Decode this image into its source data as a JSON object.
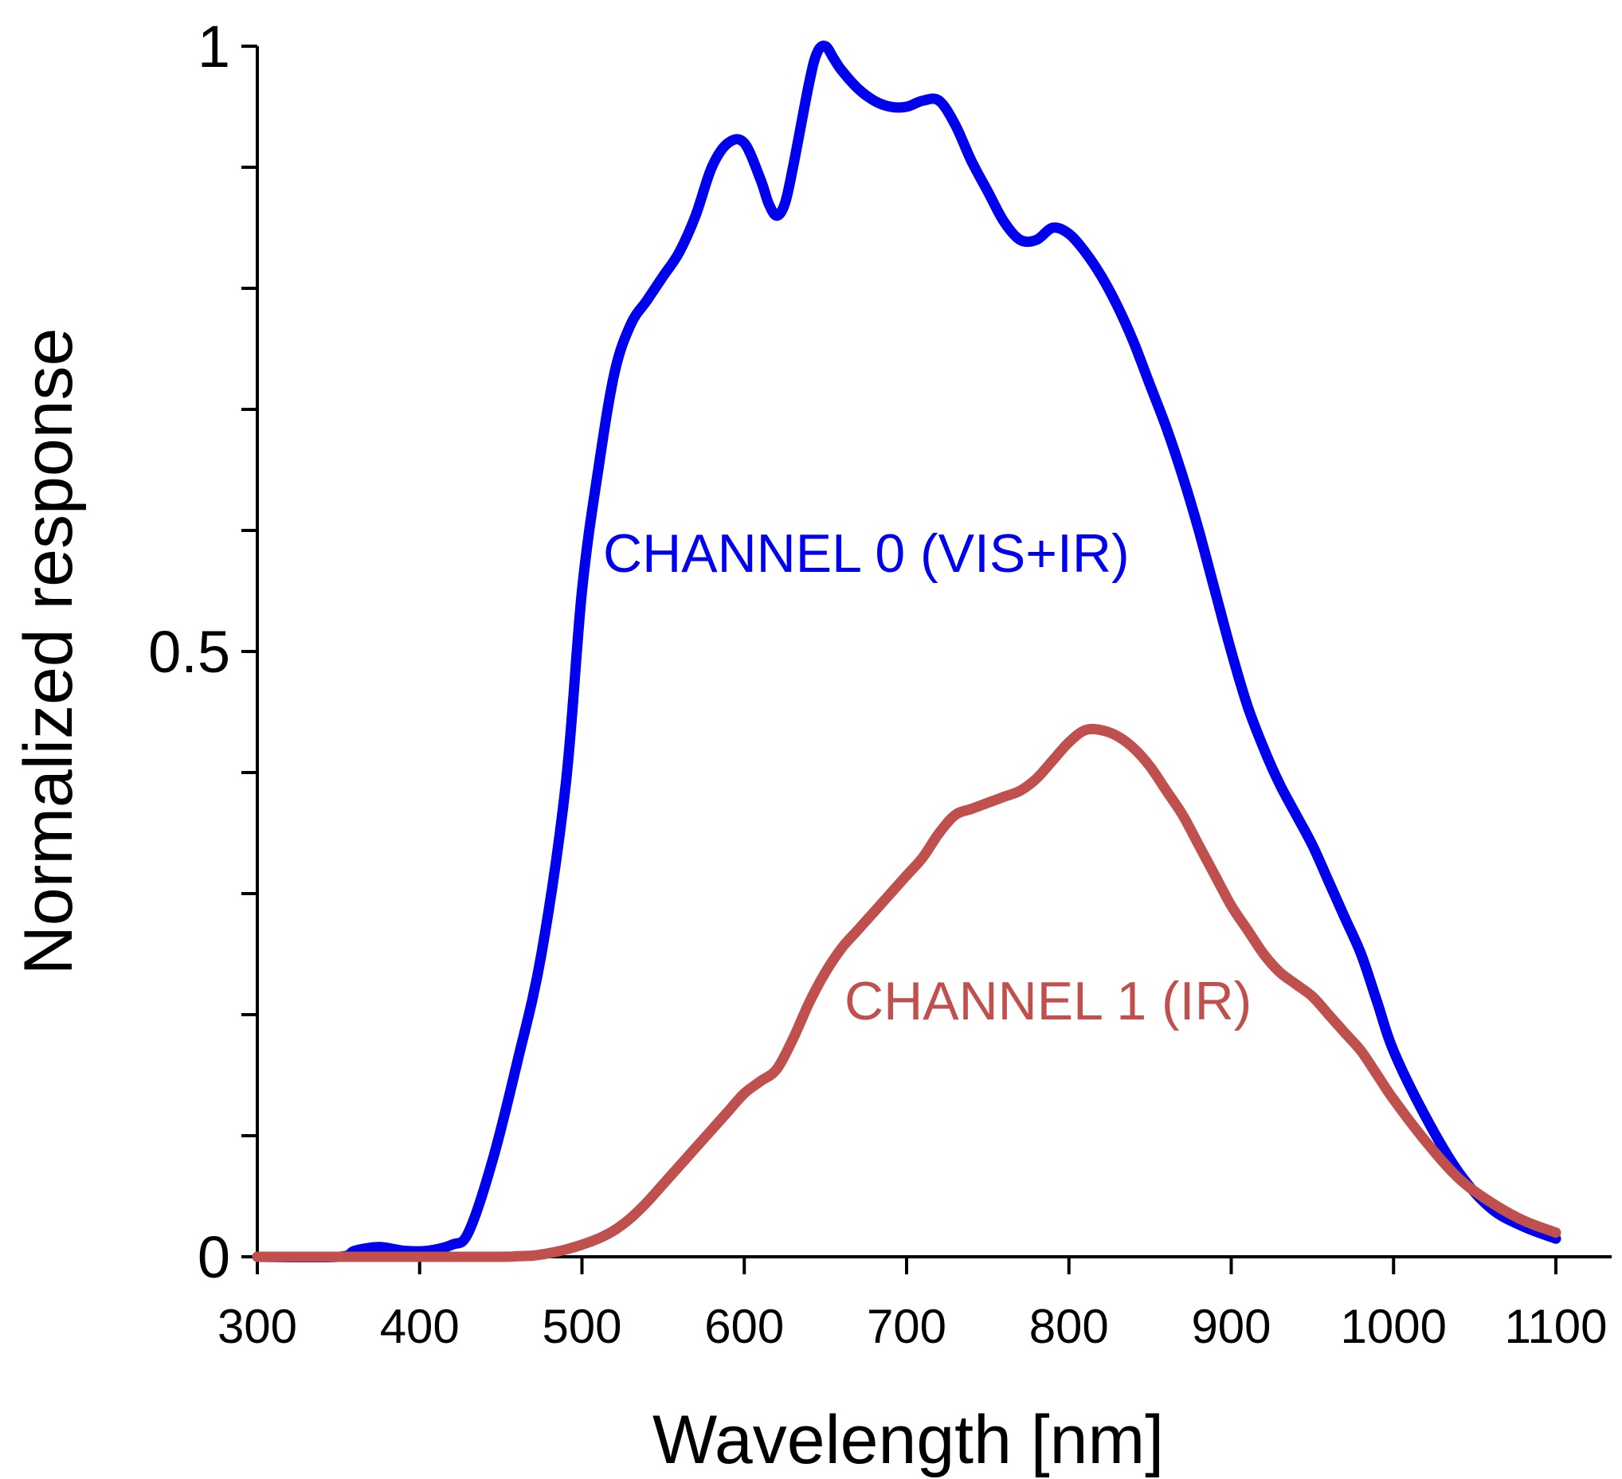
{
  "chart_data": {
    "type": "line",
    "title": "",
    "xlabel": "Wavelength [nm]",
    "ylabel": "Normalized response",
    "xlim": [
      300,
      1100
    ],
    "ylim": [
      0,
      1
    ],
    "x_ticks": [
      300,
      400,
      500,
      600,
      700,
      800,
      900,
      1000,
      1100
    ],
    "x_tick_labels": [
      "300",
      "400",
      "500",
      "600",
      "700",
      "800",
      "900",
      "1000",
      "1100"
    ],
    "y_major_ticks": [
      0,
      0.5,
      1
    ],
    "y_tick_labels": [
      "0",
      "0.5",
      "1"
    ],
    "y_minor_ticks": [
      0.1,
      0.2,
      0.3,
      0.4,
      0.6,
      0.7,
      0.8,
      0.9
    ],
    "grid": false,
    "series": [
      {
        "name": "CHANNEL 0 (VIS+IR)",
        "label": "CHANNEL 0 (VIS+IR)",
        "color": "#0000ee",
        "x": [
          300,
          350,
          360,
          375,
          390,
          405,
          420,
          430,
          445,
          460,
          475,
          490,
          500,
          510,
          520,
          530,
          540,
          550,
          560,
          570,
          580,
          590,
          600,
          610,
          615,
          620,
          625,
          630,
          640,
          645,
          650,
          655,
          660,
          670,
          680,
          690,
          700,
          710,
          720,
          730,
          740,
          750,
          760,
          770,
          780,
          790,
          800,
          810,
          820,
          830,
          840,
          850,
          860,
          870,
          880,
          890,
          900,
          910,
          920,
          930,
          940,
          950,
          960,
          970,
          980,
          990,
          1000,
          1020,
          1040,
          1060,
          1080,
          1100
        ],
        "y": [
          0.0,
          0.0,
          0.005,
          0.008,
          0.005,
          0.005,
          0.01,
          0.02,
          0.08,
          0.16,
          0.25,
          0.39,
          0.55,
          0.65,
          0.73,
          0.77,
          0.79,
          0.81,
          0.83,
          0.86,
          0.9,
          0.92,
          0.92,
          0.89,
          0.87,
          0.86,
          0.87,
          0.9,
          0.97,
          0.995,
          1.0,
          0.99,
          0.98,
          0.965,
          0.955,
          0.95,
          0.95,
          0.955,
          0.955,
          0.935,
          0.905,
          0.88,
          0.855,
          0.84,
          0.84,
          0.85,
          0.845,
          0.83,
          0.81,
          0.785,
          0.755,
          0.72,
          0.685,
          0.645,
          0.6,
          0.55,
          0.5,
          0.455,
          0.42,
          0.39,
          0.365,
          0.34,
          0.31,
          0.28,
          0.25,
          0.21,
          0.17,
          0.115,
          0.07,
          0.04,
          0.025,
          0.015
        ]
      },
      {
        "name": "CHANNEL 1 (IR)",
        "label": "CHANNEL 1 (IR)",
        "color": "#c0504d",
        "x": [
          300,
          350,
          400,
          450,
          460,
          470,
          480,
          490,
          500,
          510,
          520,
          530,
          540,
          550,
          560,
          570,
          580,
          590,
          600,
          610,
          620,
          630,
          640,
          650,
          660,
          670,
          680,
          690,
          700,
          710,
          720,
          730,
          740,
          750,
          760,
          770,
          780,
          790,
          800,
          810,
          820,
          830,
          840,
          850,
          860,
          870,
          880,
          890,
          900,
          910,
          920,
          930,
          940,
          950,
          960,
          970,
          980,
          990,
          1000,
          1020,
          1040,
          1060,
          1080,
          1100
        ],
        "y": [
          0.0,
          0.0,
          0.0,
          0.0,
          0.0005,
          0.001,
          0.003,
          0.006,
          0.01,
          0.015,
          0.022,
          0.032,
          0.045,
          0.06,
          0.075,
          0.09,
          0.105,
          0.12,
          0.135,
          0.145,
          0.155,
          0.18,
          0.21,
          0.235,
          0.255,
          0.27,
          0.285,
          0.3,
          0.315,
          0.33,
          0.35,
          0.365,
          0.37,
          0.375,
          0.38,
          0.385,
          0.395,
          0.41,
          0.425,
          0.435,
          0.435,
          0.43,
          0.42,
          0.405,
          0.385,
          0.365,
          0.34,
          0.315,
          0.29,
          0.27,
          0.25,
          0.235,
          0.225,
          0.215,
          0.2,
          0.185,
          0.17,
          0.15,
          0.13,
          0.095,
          0.065,
          0.045,
          0.03,
          0.02
        ]
      }
    ]
  }
}
